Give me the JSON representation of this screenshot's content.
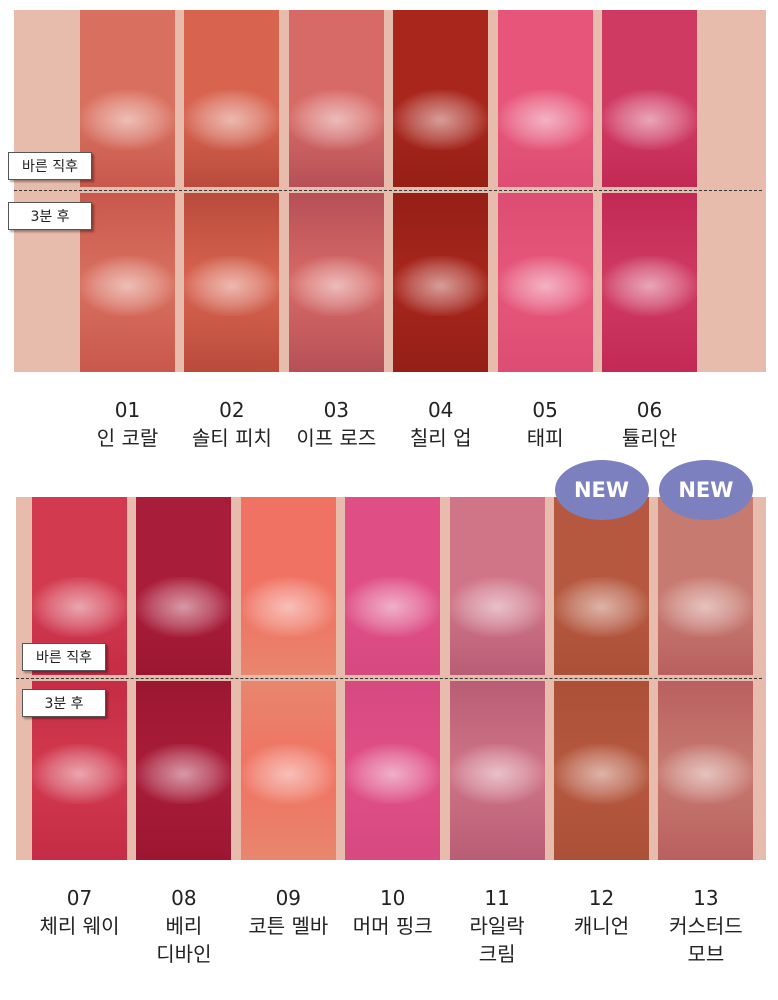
{
  "panels": [
    {
      "labels": {
        "before": "바른 직후",
        "after": "3분 후"
      },
      "items": [
        {
          "number": "01",
          "name_lines": [
            "인 코랄"
          ]
        },
        {
          "number": "02",
          "name_lines": [
            "솔티 피치"
          ]
        },
        {
          "number": "03",
          "name_lines": [
            "이프 로즈"
          ]
        },
        {
          "number": "04",
          "name_lines": [
            "칠리 업"
          ]
        },
        {
          "number": "05",
          "name_lines": [
            "태피"
          ]
        },
        {
          "number": "06",
          "name_lines": [
            "튤리안"
          ]
        }
      ]
    },
    {
      "labels": {
        "before": "바른 직후",
        "after": "3분 후"
      },
      "items": [
        {
          "number": "07",
          "name_lines": [
            "체리 웨이"
          ]
        },
        {
          "number": "08",
          "name_lines": [
            "베리",
            "디바인"
          ]
        },
        {
          "number": "09",
          "name_lines": [
            "코튼 멜바"
          ]
        },
        {
          "number": "10",
          "name_lines": [
            "머머 핑크"
          ]
        },
        {
          "number": "11",
          "name_lines": [
            "라일락",
            "크림"
          ]
        },
        {
          "number": "12",
          "name_lines": [
            "캐니언"
          ],
          "badge": "NEW"
        },
        {
          "number": "13",
          "name_lines": [
            "커스터드",
            "모브"
          ],
          "badge": "NEW"
        }
      ]
    }
  ]
}
